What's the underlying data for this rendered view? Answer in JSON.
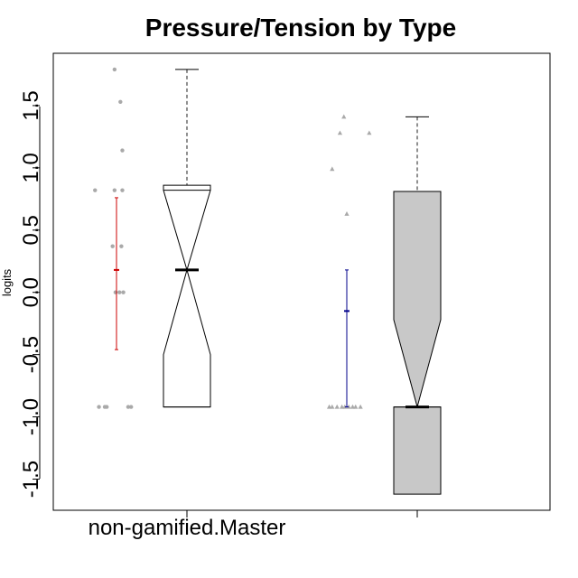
{
  "chart_data": {
    "type": "box",
    "title": "Pressure/Tension by Type",
    "xlabel": "",
    "ylabel": "logits",
    "ylim": [
      -1.75,
      1.92
    ],
    "yticks": [
      -1.5,
      -1.0,
      -0.5,
      0.0,
      0.5,
      1.0,
      1.5
    ],
    "ytick_labels": [
      "-1.5",
      "-1.0",
      "-0.5",
      "0.0",
      "0.5",
      "1.0",
      "1.5"
    ],
    "categories": [
      "non-gamified.Master",
      ""
    ],
    "colors": {
      "box_fill_1": "#ffffff",
      "box_fill_2": "#c8c8c8",
      "errorbar_1": "#cc0000",
      "errorbar_2": "#00008b",
      "points": "#a9a9a9",
      "axis": "#000000"
    },
    "boxes": [
      {
        "min": -0.92,
        "q1": -0.92,
        "median": 0.18,
        "q3": 0.82,
        "max": 1.79,
        "notch_low": -0.5,
        "notch_high": 0.86,
        "fill": "#ffffff"
      },
      {
        "min": -1.62,
        "q1": -0.92,
        "median": -0.92,
        "q3": 0.81,
        "max": 1.41,
        "notch_low": -1.62,
        "notch_high": -0.22,
        "fill": "#c8c8c8"
      }
    ],
    "errorbars": [
      {
        "mean": 0.18,
        "low": -0.46,
        "high": 0.76,
        "color": "#cc0000"
      },
      {
        "mean": -0.15,
        "low": -0.92,
        "high": 0.18,
        "color": "#00008b"
      }
    ],
    "points": [
      {
        "shape": "circle",
        "values": [
          {
            "offset": -0.22,
            "y": 0.82
          },
          {
            "offset": -0.02,
            "y": 1.79
          },
          {
            "offset": 0.04,
            "y": 1.53
          },
          {
            "offset": 0.06,
            "y": 1.14
          },
          {
            "offset": -0.02,
            "y": 0.82
          },
          {
            "offset": 0.06,
            "y": 0.82
          },
          {
            "offset": -0.04,
            "y": 0.37
          },
          {
            "offset": 0.05,
            "y": 0.37
          },
          {
            "offset": -0.01,
            "y": 0.0
          },
          {
            "offset": 0.03,
            "y": 0.0
          },
          {
            "offset": 0.07,
            "y": 0.0
          },
          {
            "offset": -0.18,
            "y": -0.92
          },
          {
            "offset": -0.12,
            "y": -0.92
          },
          {
            "offset": -0.1,
            "y": -0.92
          },
          {
            "offset": 0.12,
            "y": -0.92
          },
          {
            "offset": 0.15,
            "y": -0.92
          }
        ]
      },
      {
        "shape": "triangle",
        "values": [
          {
            "offset": -0.15,
            "y": 0.99
          },
          {
            "offset": -0.03,
            "y": 1.41
          },
          {
            "offset": -0.07,
            "y": 1.28
          },
          {
            "offset": 0.23,
            "y": 1.28
          },
          {
            "offset": 0.0,
            "y": 0.63
          },
          {
            "offset": -0.18,
            "y": -0.92
          },
          {
            "offset": -0.15,
            "y": -0.92
          },
          {
            "offset": -0.1,
            "y": -0.92
          },
          {
            "offset": -0.05,
            "y": -0.92
          },
          {
            "offset": -0.02,
            "y": -0.92
          },
          {
            "offset": 0.02,
            "y": -0.92
          },
          {
            "offset": 0.06,
            "y": -0.92
          },
          {
            "offset": 0.09,
            "y": -0.92
          },
          {
            "offset": 0.14,
            "y": -0.92
          }
        ]
      }
    ]
  }
}
